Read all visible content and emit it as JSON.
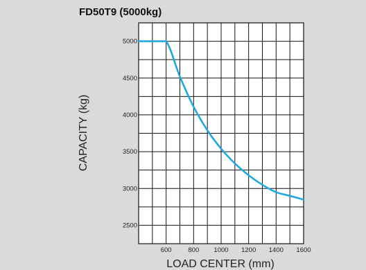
{
  "chart_data": {
    "type": "line",
    "title": "FD50T9 (5000kg)",
    "xlabel": "LOAD CENTER (mm)",
    "ylabel": "CAPACITY (kg)",
    "xlim": [
      400,
      1600
    ],
    "ylim": [
      2250,
      5250
    ],
    "x_ticks": [
      600,
      800,
      1000,
      1200,
      1400,
      1600
    ],
    "y_ticks": [
      2500,
      3000,
      3500,
      4000,
      4500,
      5000
    ],
    "grid": true,
    "line_color": "#1fa8e0",
    "series": [
      {
        "x": [
          400,
          500,
          600,
          700,
          800,
          900,
          1000,
          1100,
          1200,
          1300,
          1400,
          1500,
          1600
        ],
        "values": [
          5000,
          5000,
          5000,
          4520,
          4110,
          3790,
          3540,
          3340,
          3180,
          3050,
          2950,
          2900,
          2850
        ]
      }
    ]
  }
}
